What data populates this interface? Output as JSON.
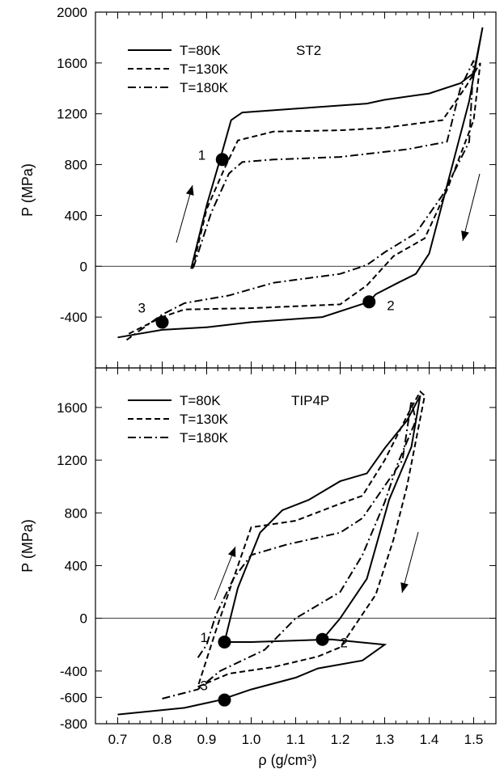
{
  "chart_data": [
    {
      "type": "line",
      "panel": "top",
      "title": "ST2",
      "ylabel": "P (MPa)",
      "xlabel": "",
      "xlim": [
        0.65,
        1.55
      ],
      "ylim": [
        -800,
        2000
      ],
      "yticks": [
        -400,
        0,
        400,
        800,
        1200,
        1600,
        2000
      ],
      "ytick_labels": [
        "-400",
        "0",
        "400",
        "800",
        "1200",
        "1600",
        "2000"
      ],
      "legend_position": "top-left",
      "grid": false,
      "series": [
        {
          "name": "T=80K",
          "style": "solid",
          "values": [
            [
              0.865,
              -20
            ],
            [
              0.9,
              480
            ],
            [
              0.93,
              840
            ],
            [
              0.955,
              1150
            ],
            [
              0.98,
              1210
            ],
            [
              1.1,
              1240
            ],
            [
              1.26,
              1280
            ],
            [
              1.3,
              1310
            ],
            [
              1.4,
              1360
            ],
            [
              1.47,
              1440
            ],
            [
              1.5,
              1520
            ],
            [
              1.52,
              1880
            ],
            [
              1.49,
              1300
            ],
            [
              1.46,
              900
            ],
            [
              1.43,
              500
            ],
            [
              1.4,
              100
            ],
            [
              1.37,
              -60
            ],
            [
              1.33,
              -130
            ],
            [
              1.28,
              -220
            ],
            [
              1.265,
              -280
            ],
            [
              1.16,
              -400
            ],
            [
              1.0,
              -440
            ],
            [
              0.9,
              -480
            ],
            [
              0.8,
              -500
            ],
            [
              0.7,
              -560
            ]
          ]
        },
        {
          "name": "T=130K",
          "style": "dashed",
          "values": [
            [
              0.868,
              -20
            ],
            [
              0.9,
              450
            ],
            [
              0.94,
              770
            ],
            [
              0.97,
              990
            ],
            [
              1.05,
              1060
            ],
            [
              1.2,
              1070
            ],
            [
              1.3,
              1090
            ],
            [
              1.43,
              1150
            ],
            [
              1.48,
              1400
            ],
            [
              1.515,
              1600
            ],
            [
              1.5,
              1150
            ],
            [
              1.44,
              600
            ],
            [
              1.39,
              220
            ],
            [
              1.32,
              80
            ],
            [
              1.26,
              -150
            ],
            [
              1.2,
              -300
            ],
            [
              1.0,
              -330
            ],
            [
              0.85,
              -340
            ],
            [
              0.8,
              -400
            ],
            [
              0.72,
              -540
            ]
          ]
        },
        {
          "name": "T=180K",
          "style": "dashdot",
          "values": [
            [
              0.87,
              -10
            ],
            [
              0.91,
              420
            ],
            [
              0.95,
              730
            ],
            [
              0.98,
              820
            ],
            [
              1.05,
              840
            ],
            [
              1.2,
              860
            ],
            [
              1.35,
              920
            ],
            [
              1.44,
              980
            ],
            [
              1.47,
              1400
            ],
            [
              1.5,
              1620
            ],
            [
              1.49,
              980
            ],
            [
              1.43,
              560
            ],
            [
              1.37,
              260
            ],
            [
              1.3,
              110
            ],
            [
              1.26,
              10
            ],
            [
              1.2,
              -60
            ],
            [
              1.05,
              -130
            ],
            [
              0.95,
              -230
            ],
            [
              0.85,
              -290
            ],
            [
              0.8,
              -380
            ],
            [
              0.72,
              -580
            ]
          ]
        }
      ],
      "annotations": [
        {
          "label": "1",
          "point": [
            0.935,
            840
          ]
        },
        {
          "label": "2",
          "point": [
            1.265,
            -280
          ]
        },
        {
          "label": "3",
          "point": [
            0.8,
            -440
          ]
        }
      ]
    },
    {
      "type": "line",
      "panel": "bottom",
      "title": "TIP4P",
      "ylabel": "P (MPa)",
      "xlabel": "ρ (g/cm³)",
      "xlim": [
        0.65,
        1.55
      ],
      "ylim": [
        -800,
        1900
      ],
      "xticks": [
        0.7,
        0.8,
        0.9,
        1.0,
        1.1,
        1.2,
        1.3,
        1.4,
        1.5
      ],
      "xtick_labels": [
        "0.7",
        "0.8",
        "0.9",
        "1.0",
        "1.1",
        "1.2",
        "1.3",
        "1.4",
        "1.5"
      ],
      "yticks": [
        -800,
        -600,
        -400,
        0,
        400,
        800,
        1200,
        1600
      ],
      "ytick_labels": [
        "-800",
        "-600",
        "-400",
        "0",
        "400",
        "800",
        "1200",
        "1600"
      ],
      "legend_position": "top-left",
      "grid": false,
      "series": [
        {
          "name": "T=80K",
          "style": "solid",
          "values": [
            [
              0.7,
              -730
            ],
            [
              0.85,
              -680
            ],
            [
              0.93,
              -620
            ],
            [
              1.0,
              -540
            ],
            [
              1.1,
              -450
            ],
            [
              1.15,
              -380
            ],
            [
              1.25,
              -320
            ],
            [
              1.3,
              -200
            ],
            [
              1.18,
              -160
            ],
            [
              1.0,
              -180
            ],
            [
              0.94,
              -180
            ],
            [
              0.97,
              230
            ],
            [
              1.02,
              650
            ],
            [
              1.07,
              820
            ],
            [
              1.13,
              900
            ],
            [
              1.2,
              1040
            ],
            [
              1.26,
              1100
            ],
            [
              1.3,
              1290
            ],
            [
              1.35,
              1500
            ],
            [
              1.38,
              1690
            ],
            [
              1.36,
              1300
            ],
            [
              1.31,
              900
            ],
            [
              1.26,
              300
            ],
            [
              1.2,
              0
            ],
            [
              1.16,
              -160
            ]
          ]
        },
        {
          "name": "T=130K",
          "style": "dashed",
          "values": [
            [
              0.88,
              -520
            ],
            [
              0.95,
              -420
            ],
            [
              1.05,
              -370
            ],
            [
              1.15,
              -290
            ],
            [
              1.2,
              -220
            ],
            [
              1.28,
              180
            ],
            [
              1.32,
              600
            ],
            [
              1.35,
              1000
            ],
            [
              1.39,
              1690
            ],
            [
              1.38,
              1720
            ],
            [
              1.36,
              1600
            ],
            [
              1.3,
              1200
            ],
            [
              1.25,
              930
            ],
            [
              1.2,
              870
            ],
            [
              1.1,
              740
            ],
            [
              1.0,
              690
            ],
            [
              0.96,
              300
            ],
            [
              0.93,
              0
            ],
            [
              0.92,
              -100
            ],
            [
              0.88,
              -520
            ]
          ]
        },
        {
          "name": "T=180K",
          "style": "dashdot",
          "values": [
            [
              0.8,
              -610
            ],
            [
              0.88,
              -540
            ],
            [
              0.93,
              -400
            ],
            [
              1.03,
              -240
            ],
            [
              1.1,
              0
            ],
            [
              1.2,
              200
            ],
            [
              1.25,
              480
            ],
            [
              1.3,
              880
            ],
            [
              1.33,
              1180
            ],
            [
              1.37,
              1500
            ],
            [
              1.36,
              1650
            ],
            [
              1.34,
              1200
            ],
            [
              1.25,
              760
            ],
            [
              1.2,
              650
            ],
            [
              1.08,
              560
            ],
            [
              1.0,
              480
            ],
            [
              0.96,
              300
            ],
            [
              0.92,
              20
            ],
            [
              0.9,
              -200
            ],
            [
              0.88,
              -300
            ]
          ]
        }
      ],
      "annotations": [
        {
          "label": "1",
          "point": [
            0.94,
            -180
          ]
        },
        {
          "label": "2",
          "point": [
            1.16,
            -160
          ]
        },
        {
          "label": "3",
          "point": [
            0.94,
            -620
          ]
        }
      ]
    }
  ]
}
